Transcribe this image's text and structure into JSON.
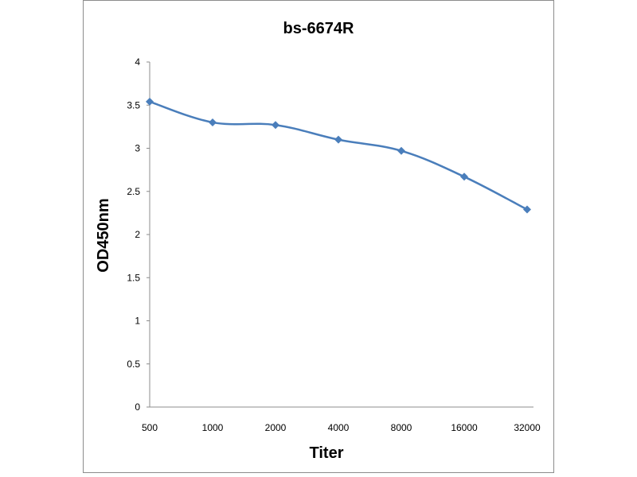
{
  "chart_data": {
    "type": "line",
    "title": "bs-6674R",
    "xlabel": "Titer",
    "ylabel": "OD450nm",
    "categories": [
      "500",
      "1000",
      "2000",
      "4000",
      "8000",
      "16000",
      "32000"
    ],
    "series": [
      {
        "values": [
          3.54,
          3.3,
          3.27,
          3.1,
          2.97,
          2.67,
          2.29
        ]
      }
    ],
    "ylim": [
      0,
      4
    ],
    "yticks": [
      "0",
      "0.5",
      "1",
      "1.5",
      "2",
      "2.5",
      "3",
      "3.5",
      "4"
    ],
    "grid": false,
    "legend": "none",
    "line_color": "#4a7ebb",
    "axis_color": "#8c8c8c"
  }
}
